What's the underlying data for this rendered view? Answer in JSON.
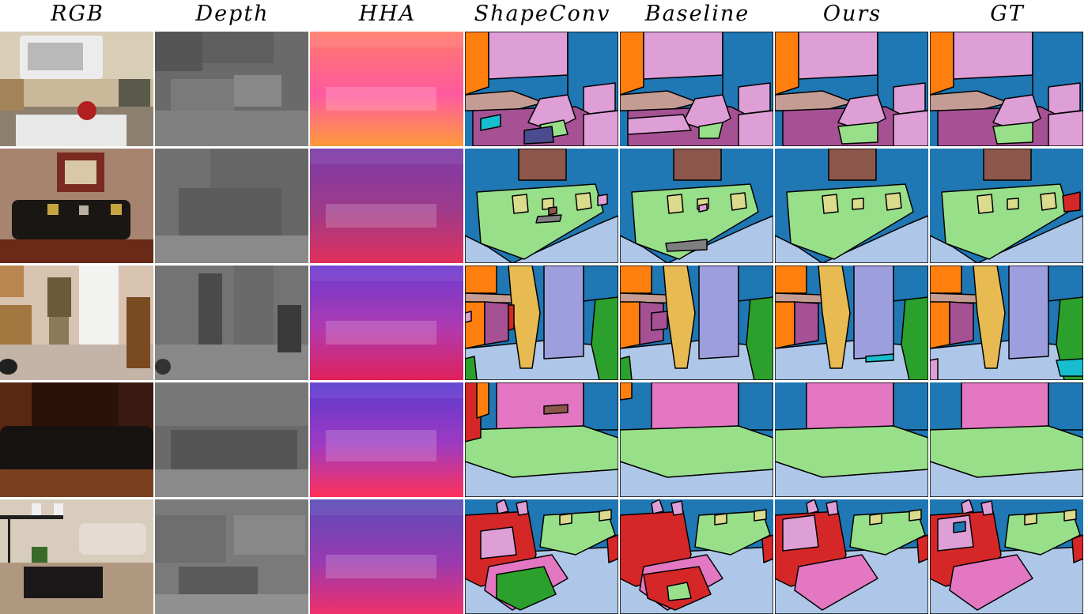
{
  "columns": [
    "RGB",
    "Depth",
    "HHA",
    "ShapeConv",
    "Baseline",
    "Ours",
    "GT"
  ],
  "colors": {
    "wall": "#1f77b4",
    "cabinet": "#ff7f0e",
    "floor": "#aec7e8",
    "sofa": "#98df8a",
    "pillow": "#dbdb8d",
    "picture": "#8c564b",
    "person": "#e7ba52",
    "refrigerator": "#9c9ede",
    "chair": "#2ca02c",
    "table": "#d62728",
    "window": "#e377c2",
    "counter": "#c49c94",
    "appliance": "#de9ed6",
    "furniture": "#a55194",
    "towel": "#17becf"
  }
}
